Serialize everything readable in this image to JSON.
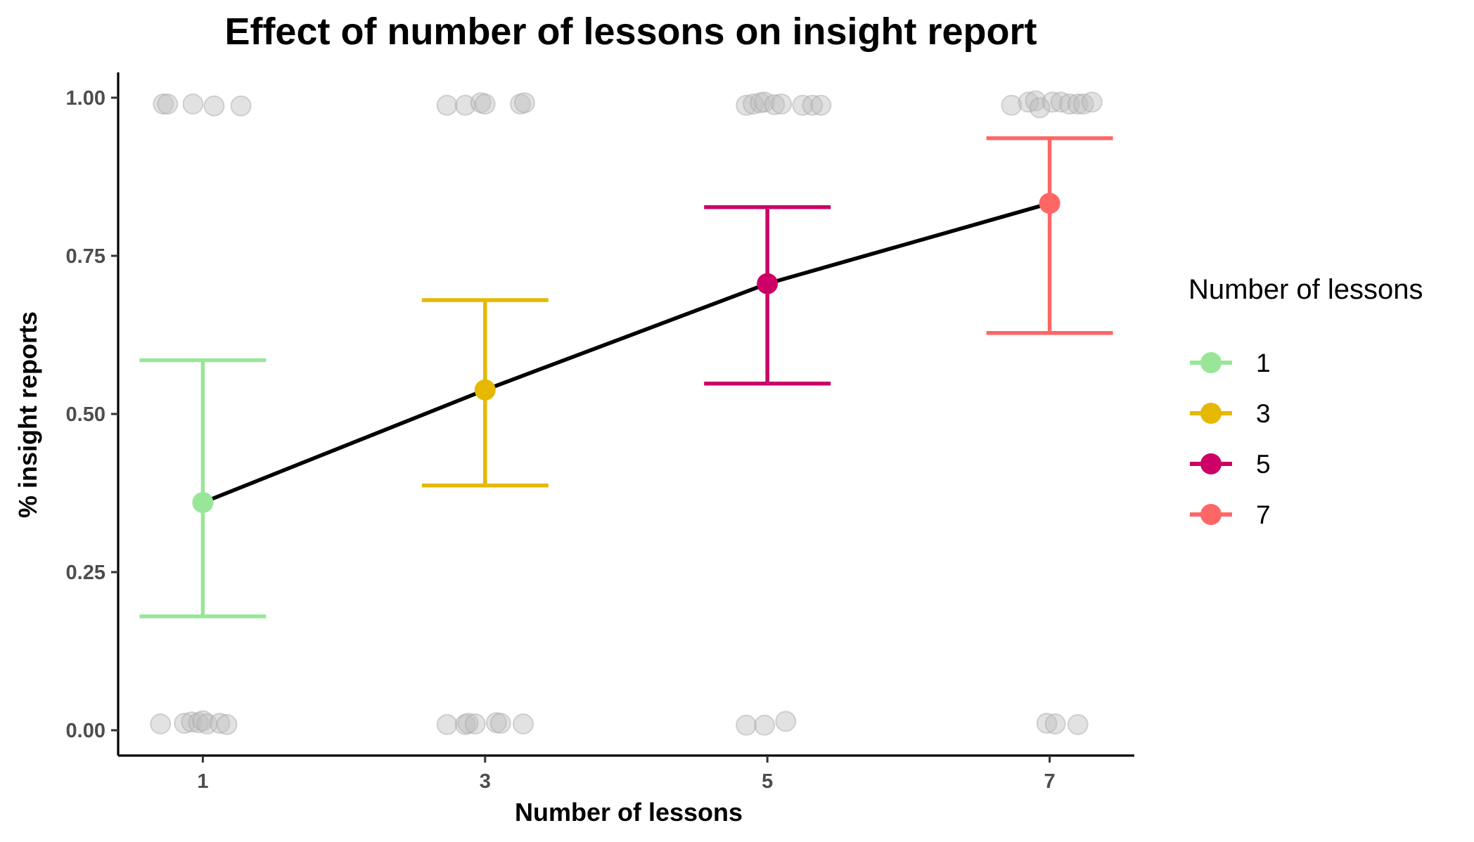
{
  "chart_data": {
    "type": "line",
    "title": "Effect of number of lessons on insight report",
    "xlabel": "Number of lessons",
    "ylabel": "% insight reports",
    "x_ticks": [
      "1",
      "3",
      "5",
      "7"
    ],
    "x_range": [
      0.4,
      7.6
    ],
    "y_ticks": [
      "0.00",
      "0.25",
      "0.50",
      "0.75",
      "1.00"
    ],
    "y_range": [
      -0.04,
      1.04
    ],
    "grid": false,
    "legend": {
      "title": "Number of lessons",
      "position": "right",
      "entries": [
        "1",
        "3",
        "5",
        "7"
      ]
    },
    "line_color": "#000000",
    "series": [
      {
        "name": "1",
        "x": 1,
        "mean": 0.36,
        "ci_low": 0.18,
        "ci_high": 0.585,
        "color": "#99e699"
      },
      {
        "name": "3",
        "x": 3,
        "mean": 0.538,
        "ci_low": 0.387,
        "ci_high": 0.68,
        "color": "#e6b800"
      },
      {
        "name": "5",
        "x": 5,
        "mean": 0.706,
        "ci_low": 0.548,
        "ci_high": 0.827,
        "color": "#cc0066"
      },
      {
        "name": "7",
        "x": 7,
        "mean": 0.833,
        "ci_low": 0.628,
        "ci_high": 0.936,
        "color": "#ff6666"
      }
    ],
    "raw_points": {
      "color": "#bfbfbf",
      "points": [
        [
          0.72,
          0.99
        ],
        [
          0.75,
          0.99
        ],
        [
          0.93,
          0.99
        ],
        [
          1.08,
          0.987
        ],
        [
          1.27,
          0.987
        ],
        [
          0.7,
          0.01
        ],
        [
          0.87,
          0.011
        ],
        [
          0.92,
          0.013
        ],
        [
          0.97,
          0.012
        ],
        [
          1.0,
          0.015
        ],
        [
          1.03,
          0.01
        ],
        [
          1.12,
          0.011
        ],
        [
          1.17,
          0.009
        ],
        [
          2.73,
          0.988
        ],
        [
          2.86,
          0.988
        ],
        [
          2.97,
          0.992
        ],
        [
          3.0,
          0.99
        ],
        [
          3.25,
          0.99
        ],
        [
          3.28,
          0.992
        ],
        [
          2.73,
          0.009
        ],
        [
          2.86,
          0.009
        ],
        [
          2.88,
          0.011
        ],
        [
          2.93,
          0.01
        ],
        [
          3.08,
          0.012
        ],
        [
          3.11,
          0.011
        ],
        [
          3.27,
          0.01
        ],
        [
          4.85,
          0.988
        ],
        [
          4.9,
          0.99
        ],
        [
          4.95,
          0.992
        ],
        [
          4.98,
          0.993
        ],
        [
          5.05,
          0.989
        ],
        [
          5.1,
          0.99
        ],
        [
          5.25,
          0.988
        ],
        [
          5.32,
          0.988
        ],
        [
          5.38,
          0.988
        ],
        [
          4.85,
          0.008
        ],
        [
          4.98,
          0.008
        ],
        [
          5.13,
          0.014
        ],
        [
          6.73,
          0.988
        ],
        [
          6.85,
          0.993
        ],
        [
          6.9,
          0.995
        ],
        [
          6.93,
          0.984
        ],
        [
          7.02,
          0.993
        ],
        [
          7.08,
          0.993
        ],
        [
          7.14,
          0.99
        ],
        [
          7.2,
          0.99
        ],
        [
          7.24,
          0.99
        ],
        [
          7.3,
          0.993
        ],
        [
          6.98,
          0.011
        ],
        [
          7.04,
          0.01
        ],
        [
          7.2,
          0.009
        ]
      ]
    }
  }
}
